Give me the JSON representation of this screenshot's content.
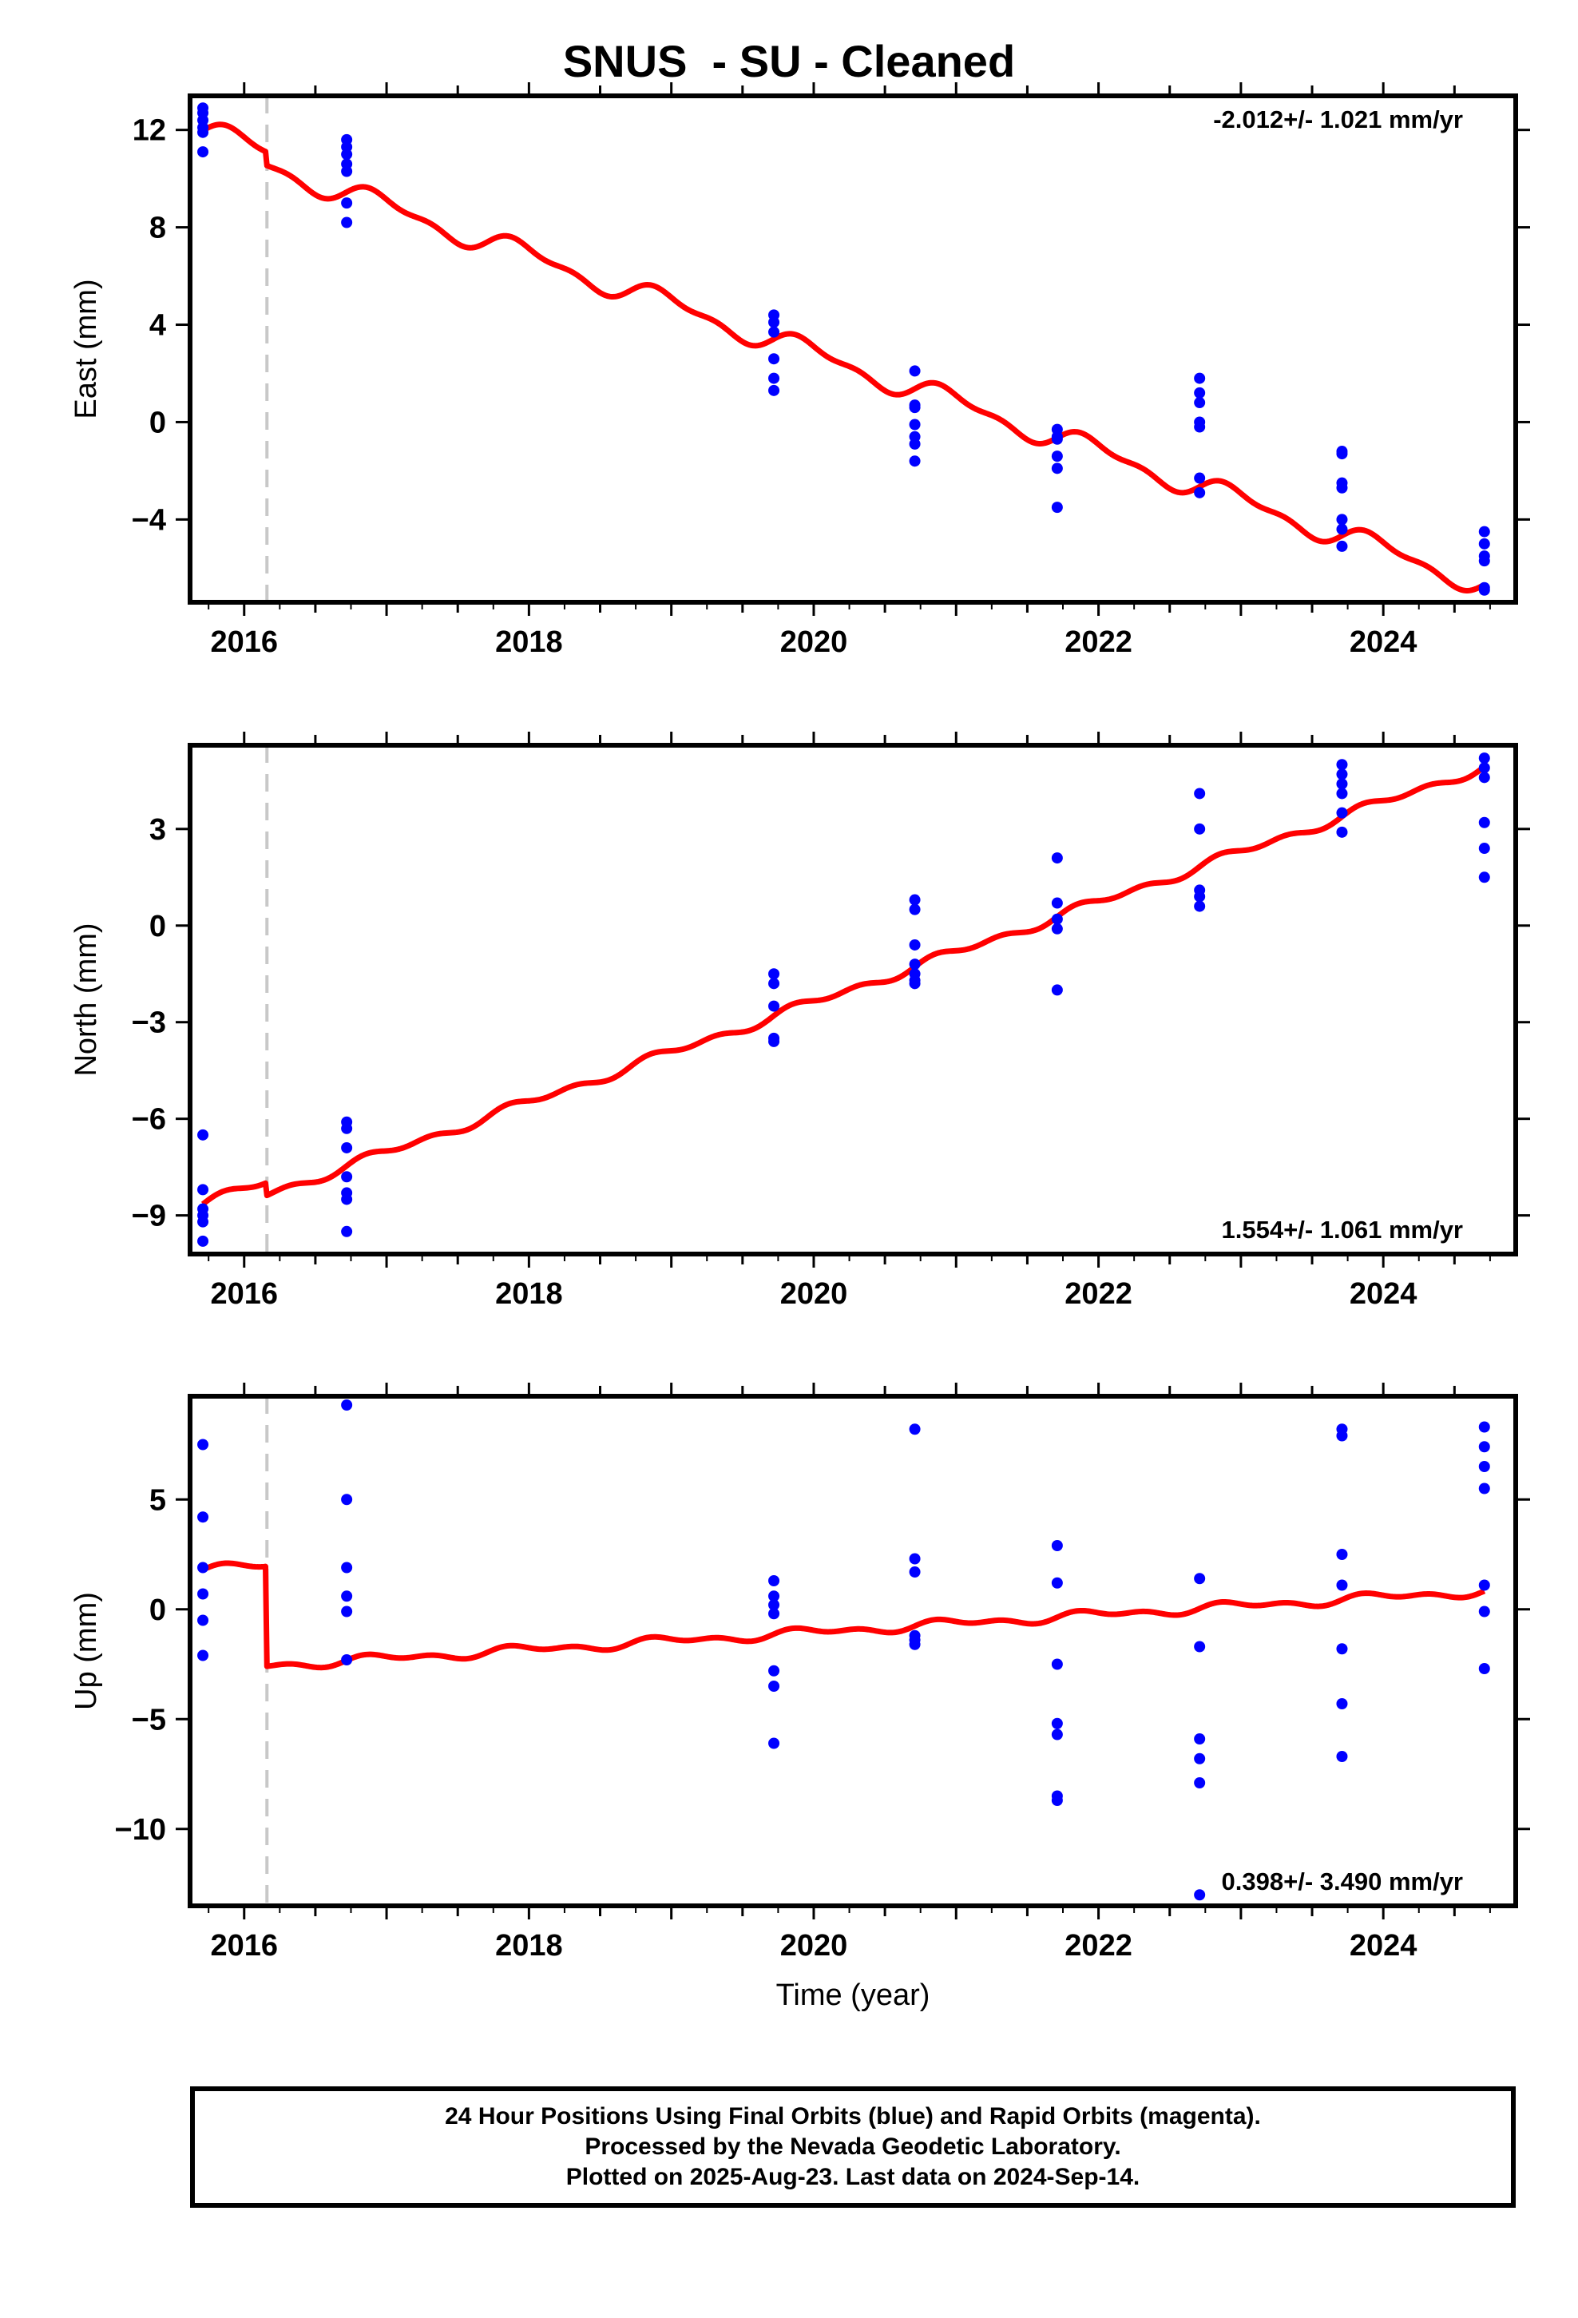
{
  "title": "SNUS  - SU - Cleaned",
  "footer": {
    "line1": "24 Hour Positions Using Final Orbits (blue) and Rapid Orbits (magenta).",
    "line2": "Processed by the Nevada Geodetic Laboratory.",
    "line3": "Plotted on 2025-Aug-23. Last data on 2024-Sep-14."
  },
  "colors": {
    "data": "#0000ff",
    "model": "#ff0000",
    "step_line": "#c8c8c8",
    "frame": "#000000"
  },
  "chart_data": [
    {
      "type": "scatter",
      "name": "east",
      "ylabel": "East (mm)",
      "xlabel": "",
      "xlim": [
        2015.62,
        2024.93
      ],
      "ylim": [
        -7.4,
        13.4
      ],
      "yticks": [
        12,
        8,
        4,
        0,
        -4
      ],
      "xticks": [
        2016,
        2018,
        2020,
        2022,
        2024
      ],
      "step_epoch": 2016.16,
      "annotation": "-2.012+/- 1.021 mm/yr",
      "annotation_position": "top-right",
      "model": {
        "rate": -2.012,
        "base": 11.98,
        "t0": 2015.71,
        "amp_annual": 0.42,
        "amp_semi": 0.2,
        "offset_at_step": -0.55
      },
      "points": [
        [
          2015.71,
          12.9
        ],
        [
          2015.71,
          12.7
        ],
        [
          2015.71,
          12.4
        ],
        [
          2015.71,
          12.1
        ],
        [
          2015.71,
          11.9
        ],
        [
          2015.71,
          11.1
        ],
        [
          2016.72,
          11.6
        ],
        [
          2016.72,
          11.3
        ],
        [
          2016.72,
          11.0
        ],
        [
          2016.72,
          10.6
        ],
        [
          2016.72,
          10.3
        ],
        [
          2016.72,
          9.0
        ],
        [
          2016.72,
          8.2
        ],
        [
          2019.72,
          4.4
        ],
        [
          2019.72,
          4.1
        ],
        [
          2019.72,
          3.7
        ],
        [
          2019.72,
          2.6
        ],
        [
          2019.72,
          1.8
        ],
        [
          2019.72,
          1.3
        ],
        [
          2020.71,
          2.1
        ],
        [
          2020.71,
          0.7
        ],
        [
          2020.71,
          0.6
        ],
        [
          2020.71,
          -0.1
        ],
        [
          2020.71,
          -0.6
        ],
        [
          2020.71,
          -0.9
        ],
        [
          2020.71,
          -1.6
        ],
        [
          2021.71,
          -0.3
        ],
        [
          2021.71,
          -0.6
        ],
        [
          2021.71,
          -0.7
        ],
        [
          2021.71,
          -1.4
        ],
        [
          2021.71,
          -1.9
        ],
        [
          2021.71,
          -3.5
        ],
        [
          2022.71,
          1.8
        ],
        [
          2022.71,
          1.2
        ],
        [
          2022.71,
          0.8
        ],
        [
          2022.71,
          0.0
        ],
        [
          2022.71,
          -0.2
        ],
        [
          2022.71,
          -2.3
        ],
        [
          2022.71,
          -2.9
        ],
        [
          2023.71,
          -1.2
        ],
        [
          2023.71,
          -1.3
        ],
        [
          2023.71,
          -2.5
        ],
        [
          2023.71,
          -2.7
        ],
        [
          2023.71,
          -4.0
        ],
        [
          2023.71,
          -4.4
        ],
        [
          2023.71,
          -5.1
        ],
        [
          2024.71,
          -4.5
        ],
        [
          2024.71,
          -5.0
        ],
        [
          2024.71,
          -5.5
        ],
        [
          2024.71,
          -5.7
        ],
        [
          2024.71,
          -6.8
        ],
        [
          2024.71,
          -6.9
        ]
      ]
    },
    {
      "type": "scatter",
      "name": "north",
      "ylabel": "North (mm)",
      "xlabel": "",
      "xlim": [
        2015.62,
        2024.93
      ],
      "ylim": [
        -10.2,
        5.6
      ],
      "yticks": [
        3,
        0,
        -3,
        -6,
        -9
      ],
      "xticks": [
        2016,
        2018,
        2020,
        2022,
        2024
      ],
      "step_epoch": 2016.16,
      "annotation": "1.554+/- 1.061 mm/yr",
      "annotation_position": "bottom-right",
      "model": {
        "rate": 1.554,
        "base": -8.65,
        "t0": 2015.71,
        "amp_annual": 0.1,
        "amp_semi": 0.1,
        "offset_at_step": -0.4
      },
      "points": [
        [
          2015.71,
          -6.5
        ],
        [
          2015.71,
          -8.2
        ],
        [
          2015.71,
          -8.8
        ],
        [
          2015.71,
          -9.0
        ],
        [
          2015.71,
          -9.2
        ],
        [
          2015.71,
          -9.8
        ],
        [
          2016.72,
          -6.1
        ],
        [
          2016.72,
          -6.3
        ],
        [
          2016.72,
          -6.9
        ],
        [
          2016.72,
          -7.8
        ],
        [
          2016.72,
          -8.3
        ],
        [
          2016.72,
          -8.5
        ],
        [
          2016.72,
          -9.5
        ],
        [
          2019.72,
          -1.5
        ],
        [
          2019.72,
          -1.8
        ],
        [
          2019.72,
          -2.5
        ],
        [
          2019.72,
          -3.5
        ],
        [
          2019.72,
          -3.6
        ],
        [
          2020.71,
          0.8
        ],
        [
          2020.71,
          0.5
        ],
        [
          2020.71,
          -0.6
        ],
        [
          2020.71,
          -1.2
        ],
        [
          2020.71,
          -1.5
        ],
        [
          2020.71,
          -1.7
        ],
        [
          2020.71,
          -1.8
        ],
        [
          2021.71,
          2.1
        ],
        [
          2021.71,
          0.7
        ],
        [
          2021.71,
          0.2
        ],
        [
          2021.71,
          -0.1
        ],
        [
          2021.71,
          -2.0
        ],
        [
          2022.71,
          4.1
        ],
        [
          2022.71,
          3.0
        ],
        [
          2022.71,
          1.1
        ],
        [
          2022.71,
          0.9
        ],
        [
          2022.71,
          0.6
        ],
        [
          2023.71,
          5.0
        ],
        [
          2023.71,
          4.7
        ],
        [
          2023.71,
          4.4
        ],
        [
          2023.71,
          4.1
        ],
        [
          2023.71,
          3.5
        ],
        [
          2023.71,
          2.9
        ],
        [
          2024.71,
          5.2
        ],
        [
          2024.71,
          4.9
        ],
        [
          2024.71,
          4.6
        ],
        [
          2024.71,
          3.2
        ],
        [
          2024.71,
          2.4
        ],
        [
          2024.71,
          1.5
        ]
      ]
    },
    {
      "type": "scatter",
      "name": "up",
      "ylabel": "Up (mm)",
      "xlabel": "Time (year)",
      "xlim": [
        2015.62,
        2024.93
      ],
      "ylim": [
        -13.5,
        9.7
      ],
      "yticks": [
        5,
        0,
        -5,
        -10
      ],
      "xticks": [
        2016,
        2018,
        2020,
        2022,
        2024
      ],
      "step_epoch": 2016.16,
      "annotation": "0.398+/- 3.490 mm/yr",
      "annotation_position": "bottom-right",
      "model": {
        "rate": 0.398,
        "base": 1.8,
        "t0": 2015.71,
        "amp_annual": 0.15,
        "amp_semi": 0.12,
        "offset_at_step": -4.55
      },
      "points": [
        [
          2015.71,
          7.5
        ],
        [
          2015.71,
          4.2
        ],
        [
          2015.71,
          1.9
        ],
        [
          2015.71,
          0.7
        ],
        [
          2015.71,
          -0.5
        ],
        [
          2015.71,
          -2.1
        ],
        [
          2016.72,
          9.3
        ],
        [
          2016.72,
          5.0
        ],
        [
          2016.72,
          1.9
        ],
        [
          2016.72,
          0.6
        ],
        [
          2016.72,
          -0.1
        ],
        [
          2016.72,
          -2.3
        ],
        [
          2019.72,
          1.3
        ],
        [
          2019.72,
          0.6
        ],
        [
          2019.72,
          0.2
        ],
        [
          2019.72,
          -0.2
        ],
        [
          2019.72,
          -2.8
        ],
        [
          2019.72,
          -3.5
        ],
        [
          2019.72,
          -6.1
        ],
        [
          2020.71,
          8.2
        ],
        [
          2020.71,
          2.3
        ],
        [
          2020.71,
          1.7
        ],
        [
          2020.71,
          -1.2
        ],
        [
          2020.71,
          -1.4
        ],
        [
          2020.71,
          -1.6
        ],
        [
          2021.71,
          2.9
        ],
        [
          2021.71,
          1.2
        ],
        [
          2021.71,
          -2.5
        ],
        [
          2021.71,
          -5.2
        ],
        [
          2021.71,
          -5.7
        ],
        [
          2021.71,
          -8.5
        ],
        [
          2021.71,
          -8.7
        ],
        [
          2022.71,
          1.4
        ],
        [
          2022.71,
          -1.7
        ],
        [
          2022.71,
          -5.9
        ],
        [
          2022.71,
          -6.8
        ],
        [
          2022.71,
          -7.9
        ],
        [
          2022.71,
          -13.0
        ],
        [
          2023.71,
          8.2
        ],
        [
          2023.71,
          7.9
        ],
        [
          2023.71,
          2.5
        ],
        [
          2023.71,
          1.1
        ],
        [
          2023.71,
          -1.8
        ],
        [
          2023.71,
          -4.3
        ],
        [
          2023.71,
          -6.7
        ],
        [
          2024.71,
          8.3
        ],
        [
          2024.71,
          7.4
        ],
        [
          2024.71,
          6.5
        ],
        [
          2024.71,
          5.5
        ],
        [
          2024.71,
          1.1
        ],
        [
          2024.71,
          -0.1
        ],
        [
          2024.71,
          -2.7
        ]
      ]
    }
  ]
}
